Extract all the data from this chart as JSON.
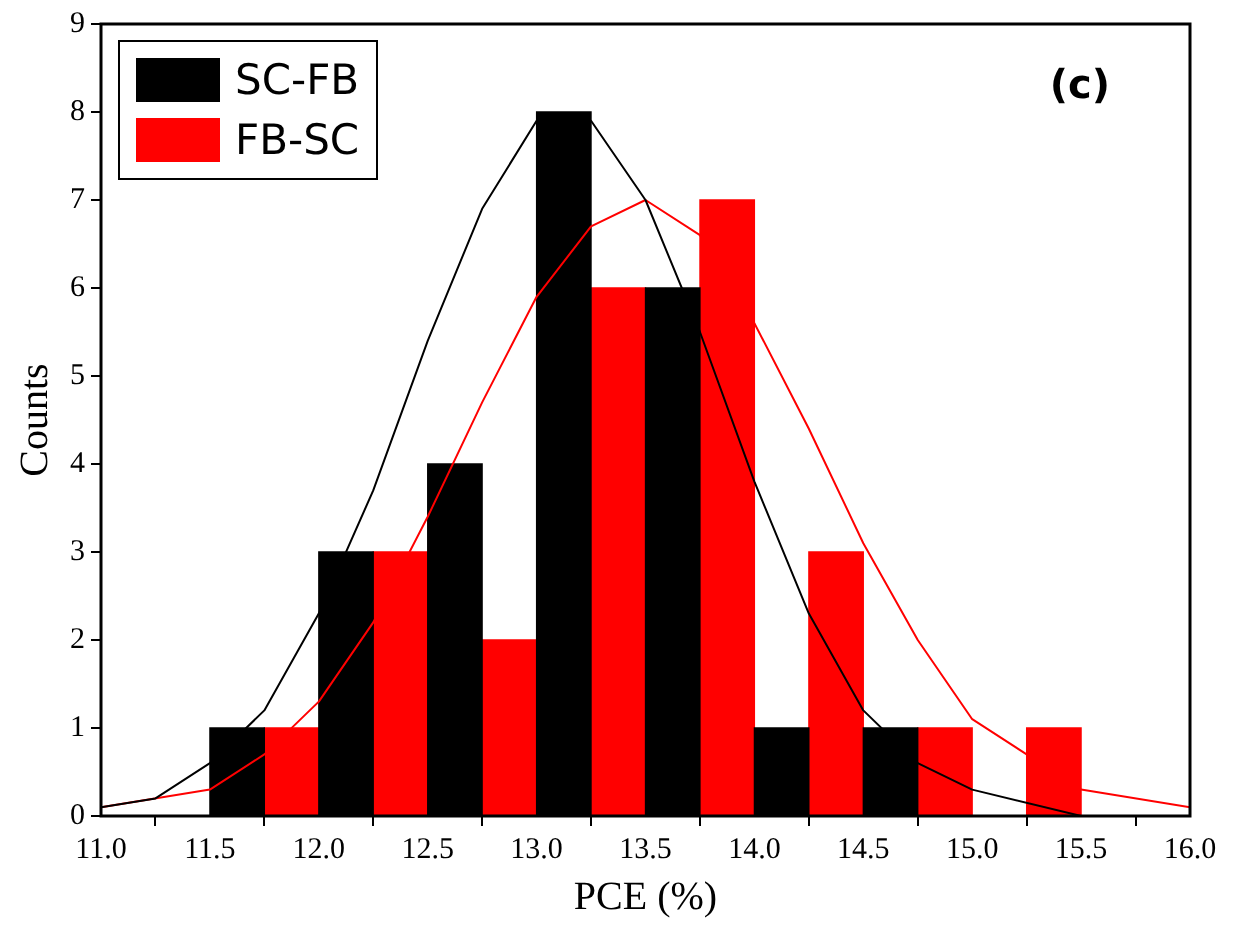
{
  "chart_data": {
    "type": "histogram",
    "xlabel": "PCE (%)",
    "ylabel": "Counts",
    "annotations": [
      "(c)"
    ],
    "series": [
      {
        "name": "SC-FB",
        "color": "#000000",
        "bins": [
          11.5,
          11.75,
          12.0,
          12.25,
          12.5,
          12.75,
          13.0,
          13.25,
          13.5,
          13.75,
          14.0,
          14.25,
          14.5,
          14.75
        ],
        "values": [
          1,
          0,
          3,
          0,
          4,
          0,
          8,
          0,
          6,
          0,
          1,
          0,
          1
        ]
      },
      {
        "name": "FB-SC",
        "color": "#ff0000",
        "bins": [
          11.75,
          12.0,
          12.25,
          12.5,
          12.75,
          13.0,
          13.25,
          13.5,
          13.75,
          14.0,
          14.25,
          14.5,
          14.75,
          15.0,
          15.25,
          15.5
        ],
        "values": [
          1,
          0,
          3,
          0,
          2,
          0,
          6,
          0,
          7,
          0,
          3,
          0,
          1,
          0,
          1
        ]
      },
      {
        "type": "line",
        "color": "#000000",
        "x": [
          11.0,
          11.25,
          11.5,
          11.75,
          12.0,
          12.25,
          12.5,
          12.75,
          13.0,
          13.25,
          13.5,
          13.75,
          14.0,
          14.25,
          14.5,
          14.75,
          15.0,
          15.5,
          16.0
        ],
        "values": [
          0.1,
          0.2,
          0.6,
          1.2,
          2.3,
          3.7,
          5.4,
          6.9,
          7.9,
          7.9,
          7.0,
          5.5,
          3.8,
          2.3,
          1.2,
          0.6,
          0.3,
          0.0,
          0.0
        ]
      },
      {
        "type": "line",
        "color": "#ff0000",
        "x": [
          11.0,
          11.5,
          11.75,
          12.0,
          12.25,
          12.5,
          12.75,
          13.0,
          13.25,
          13.5,
          13.75,
          14.0,
          14.25,
          14.5,
          14.75,
          15.0,
          15.5,
          16.0
        ],
        "values": [
          0.1,
          0.3,
          0.7,
          1.3,
          2.2,
          3.4,
          4.7,
          5.9,
          6.7,
          7.0,
          6.6,
          5.6,
          4.4,
          3.1,
          2.0,
          1.1,
          0.3,
          0.1
        ]
      }
    ],
    "xlim": [
      11.0,
      16.0
    ],
    "xticks": [
      {
        "value": 11,
        "label": "11.0"
      },
      {
        "value": 11.5,
        "label": "11.5"
      },
      {
        "value": 12,
        "label": "12.0"
      },
      {
        "value": 12.5,
        "label": "12.5"
      },
      {
        "value": 13,
        "label": "13.0"
      },
      {
        "value": 13.5,
        "label": "13.5"
      },
      {
        "value": 14,
        "label": "14.0"
      },
      {
        "value": 14.5,
        "label": "14.5"
      },
      {
        "value": 15,
        "label": "15.0"
      },
      {
        "value": 15.5,
        "label": "15.5"
      },
      {
        "value": 16,
        "label": "16.0"
      }
    ],
    "ylim": [
      0,
      9
    ],
    "yticks": [
      0,
      1,
      2,
      3,
      4,
      5,
      6,
      7,
      8,
      9
    ],
    "grid": false,
    "legend": "top left"
  }
}
